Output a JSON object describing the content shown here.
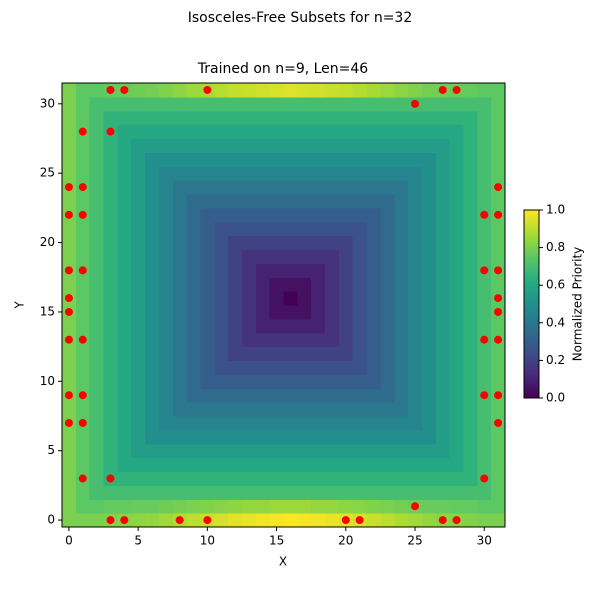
{
  "chart_data": {
    "type": "heatmap",
    "suptitle": "Isosceles-Free Subsets for n=32",
    "title": "Trained on n=9, Len=46",
    "x_label": "X",
    "y_label": "Y",
    "colorbar_label": "Normalized Priority",
    "colormap": "viridis",
    "xlim": [
      -0.5,
      31.5
    ],
    "ylim": [
      -0.5,
      31.5
    ],
    "xticks": [
      0,
      5,
      10,
      15,
      20,
      25,
      30
    ],
    "yticks": [
      0,
      5,
      10,
      15,
      20,
      25,
      30
    ],
    "clim": [
      0,
      1
    ],
    "cticks": [
      {
        "value": 0,
        "label": "0.0"
      },
      {
        "value": 0.2,
        "label": "0.2"
      },
      {
        "value": 0.4,
        "label": "0.4"
      },
      {
        "value": 0.6,
        "label": "0.6"
      },
      {
        "value": 0.8,
        "label": "0.8"
      },
      {
        "value": 1,
        "label": "1.0"
      }
    ],
    "z": [
      [
        0.8,
        0.8,
        0.8,
        0.81,
        0.82,
        0.83,
        0.84,
        0.86,
        0.88,
        0.9,
        0.92,
        0.94,
        0.96,
        0.97,
        0.98,
        0.99,
        1.0,
        0.99,
        0.98,
        0.97,
        0.96,
        0.94,
        0.92,
        0.9,
        0.88,
        0.86,
        0.84,
        0.83,
        0.82,
        0.81,
        0.8,
        0.8
      ],
      [
        0.8,
        0.75,
        0.75,
        0.76,
        0.76,
        0.77,
        0.77,
        0.78,
        0.79,
        0.8,
        0.81,
        0.82,
        0.83,
        0.84,
        0.84,
        0.85,
        0.85,
        0.85,
        0.84,
        0.84,
        0.83,
        0.82,
        0.81,
        0.8,
        0.79,
        0.78,
        0.77,
        0.77,
        0.76,
        0.76,
        0.75,
        0.75
      ],
      [
        0.8,
        0.75,
        0.7,
        0.7,
        0.7,
        0.7,
        0.7,
        0.7,
        0.7,
        0.7,
        0.7,
        0.7,
        0.7,
        0.7,
        0.7,
        0.7,
        0.7,
        0.7,
        0.7,
        0.7,
        0.7,
        0.7,
        0.7,
        0.7,
        0.7,
        0.7,
        0.7,
        0.7,
        0.7,
        0.7,
        0.7,
        0.75
      ],
      [
        0.8,
        0.75,
        0.7,
        0.65,
        0.65,
        0.65,
        0.65,
        0.65,
        0.65,
        0.65,
        0.65,
        0.65,
        0.65,
        0.65,
        0.65,
        0.65,
        0.65,
        0.65,
        0.65,
        0.65,
        0.65,
        0.65,
        0.65,
        0.65,
        0.65,
        0.65,
        0.65,
        0.65,
        0.65,
        0.65,
        0.7,
        0.75
      ],
      [
        0.8,
        0.75,
        0.7,
        0.65,
        0.6,
        0.6,
        0.6,
        0.6,
        0.6,
        0.6,
        0.6,
        0.6,
        0.6,
        0.6,
        0.6,
        0.6,
        0.6,
        0.6,
        0.6,
        0.6,
        0.6,
        0.6,
        0.6,
        0.6,
        0.6,
        0.6,
        0.6,
        0.6,
        0.6,
        0.65,
        0.7,
        0.75
      ],
      [
        0.8,
        0.75,
        0.7,
        0.65,
        0.6,
        0.55,
        0.55,
        0.55,
        0.55,
        0.55,
        0.55,
        0.55,
        0.55,
        0.55,
        0.55,
        0.55,
        0.55,
        0.55,
        0.55,
        0.55,
        0.55,
        0.55,
        0.55,
        0.55,
        0.55,
        0.55,
        0.55,
        0.55,
        0.6,
        0.65,
        0.7,
        0.75
      ],
      [
        0.8,
        0.75,
        0.7,
        0.65,
        0.6,
        0.55,
        0.5,
        0.5,
        0.5,
        0.5,
        0.5,
        0.5,
        0.5,
        0.5,
        0.5,
        0.5,
        0.5,
        0.5,
        0.5,
        0.5,
        0.5,
        0.5,
        0.5,
        0.5,
        0.5,
        0.5,
        0.5,
        0.55,
        0.6,
        0.65,
        0.7,
        0.75
      ],
      [
        0.8,
        0.75,
        0.7,
        0.65,
        0.6,
        0.55,
        0.5,
        0.45,
        0.45,
        0.45,
        0.45,
        0.45,
        0.45,
        0.45,
        0.45,
        0.45,
        0.45,
        0.45,
        0.45,
        0.45,
        0.45,
        0.45,
        0.45,
        0.45,
        0.45,
        0.45,
        0.5,
        0.55,
        0.6,
        0.65,
        0.7,
        0.75
      ],
      [
        0.8,
        0.75,
        0.7,
        0.65,
        0.6,
        0.55,
        0.5,
        0.45,
        0.4,
        0.4,
        0.4,
        0.4,
        0.4,
        0.4,
        0.4,
        0.4,
        0.4,
        0.4,
        0.4,
        0.4,
        0.4,
        0.4,
        0.4,
        0.4,
        0.4,
        0.45,
        0.5,
        0.55,
        0.6,
        0.65,
        0.7,
        0.75
      ],
      [
        0.8,
        0.75,
        0.7,
        0.65,
        0.6,
        0.55,
        0.5,
        0.45,
        0.4,
        0.35,
        0.35,
        0.35,
        0.35,
        0.35,
        0.35,
        0.35,
        0.35,
        0.35,
        0.35,
        0.35,
        0.35,
        0.35,
        0.35,
        0.35,
        0.4,
        0.45,
        0.5,
        0.55,
        0.6,
        0.65,
        0.7,
        0.75
      ],
      [
        0.8,
        0.75,
        0.7,
        0.65,
        0.6,
        0.55,
        0.5,
        0.45,
        0.4,
        0.35,
        0.3,
        0.3,
        0.3,
        0.3,
        0.3,
        0.3,
        0.3,
        0.3,
        0.3,
        0.3,
        0.3,
        0.3,
        0.3,
        0.35,
        0.4,
        0.45,
        0.5,
        0.55,
        0.6,
        0.65,
        0.7,
        0.75
      ],
      [
        0.8,
        0.75,
        0.7,
        0.65,
        0.6,
        0.55,
        0.5,
        0.45,
        0.4,
        0.35,
        0.3,
        0.25,
        0.25,
        0.25,
        0.25,
        0.25,
        0.25,
        0.25,
        0.25,
        0.25,
        0.25,
        0.25,
        0.3,
        0.35,
        0.4,
        0.45,
        0.5,
        0.55,
        0.6,
        0.65,
        0.7,
        0.75
      ],
      [
        0.8,
        0.75,
        0.7,
        0.65,
        0.6,
        0.55,
        0.5,
        0.45,
        0.4,
        0.35,
        0.3,
        0.25,
        0.2,
        0.2,
        0.2,
        0.2,
        0.2,
        0.2,
        0.2,
        0.2,
        0.2,
        0.25,
        0.3,
        0.35,
        0.4,
        0.45,
        0.5,
        0.55,
        0.6,
        0.65,
        0.7,
        0.75
      ],
      [
        0.8,
        0.75,
        0.7,
        0.65,
        0.6,
        0.55,
        0.5,
        0.45,
        0.4,
        0.35,
        0.3,
        0.25,
        0.2,
        0.15,
        0.15,
        0.15,
        0.15,
        0.15,
        0.15,
        0.15,
        0.2,
        0.25,
        0.3,
        0.35,
        0.4,
        0.45,
        0.5,
        0.55,
        0.6,
        0.65,
        0.7,
        0.75
      ],
      [
        0.8,
        0.75,
        0.7,
        0.65,
        0.6,
        0.55,
        0.5,
        0.45,
        0.4,
        0.35,
        0.3,
        0.25,
        0.2,
        0.15,
        0.1,
        0.1,
        0.1,
        0.1,
        0.1,
        0.15,
        0.2,
        0.25,
        0.3,
        0.35,
        0.4,
        0.45,
        0.5,
        0.55,
        0.6,
        0.65,
        0.7,
        0.75
      ],
      [
        0.8,
        0.75,
        0.7,
        0.65,
        0.6,
        0.55,
        0.5,
        0.45,
        0.4,
        0.35,
        0.3,
        0.25,
        0.2,
        0.15,
        0.1,
        0.05,
        0.05,
        0.05,
        0.1,
        0.15,
        0.2,
        0.25,
        0.3,
        0.35,
        0.4,
        0.45,
        0.5,
        0.55,
        0.6,
        0.65,
        0.7,
        0.75
      ],
      [
        0.8,
        0.75,
        0.7,
        0.65,
        0.6,
        0.55,
        0.5,
        0.45,
        0.4,
        0.35,
        0.3,
        0.25,
        0.2,
        0.15,
        0.1,
        0.05,
        0,
        0.05,
        0.1,
        0.15,
        0.2,
        0.25,
        0.3,
        0.35,
        0.4,
        0.45,
        0.5,
        0.55,
        0.6,
        0.65,
        0.7,
        0.75
      ],
      [
        0.8,
        0.75,
        0.7,
        0.65,
        0.6,
        0.55,
        0.5,
        0.45,
        0.4,
        0.35,
        0.3,
        0.25,
        0.2,
        0.15,
        0.1,
        0.05,
        0.05,
        0.05,
        0.1,
        0.15,
        0.2,
        0.25,
        0.3,
        0.35,
        0.4,
        0.45,
        0.5,
        0.55,
        0.6,
        0.65,
        0.7,
        0.75
      ],
      [
        0.8,
        0.75,
        0.7,
        0.65,
        0.6,
        0.55,
        0.5,
        0.45,
        0.4,
        0.35,
        0.3,
        0.25,
        0.2,
        0.15,
        0.1,
        0.1,
        0.1,
        0.1,
        0.1,
        0.15,
        0.2,
        0.25,
        0.3,
        0.35,
        0.4,
        0.45,
        0.5,
        0.55,
        0.6,
        0.65,
        0.7,
        0.75
      ],
      [
        0.8,
        0.75,
        0.7,
        0.65,
        0.6,
        0.55,
        0.5,
        0.45,
        0.4,
        0.35,
        0.3,
        0.25,
        0.2,
        0.15,
        0.15,
        0.15,
        0.15,
        0.15,
        0.15,
        0.15,
        0.2,
        0.25,
        0.3,
        0.35,
        0.4,
        0.45,
        0.5,
        0.55,
        0.6,
        0.65,
        0.7,
        0.75
      ],
      [
        0.8,
        0.75,
        0.7,
        0.65,
        0.6,
        0.55,
        0.5,
        0.45,
        0.4,
        0.35,
        0.3,
        0.25,
        0.2,
        0.2,
        0.2,
        0.2,
        0.2,
        0.2,
        0.2,
        0.2,
        0.2,
        0.25,
        0.3,
        0.35,
        0.4,
        0.45,
        0.5,
        0.55,
        0.6,
        0.65,
        0.7,
        0.75
      ],
      [
        0.8,
        0.75,
        0.7,
        0.65,
        0.6,
        0.55,
        0.5,
        0.45,
        0.4,
        0.35,
        0.3,
        0.25,
        0.25,
        0.25,
        0.25,
        0.25,
        0.25,
        0.25,
        0.25,
        0.25,
        0.25,
        0.25,
        0.3,
        0.35,
        0.4,
        0.45,
        0.5,
        0.55,
        0.6,
        0.65,
        0.7,
        0.75
      ],
      [
        0.8,
        0.75,
        0.7,
        0.65,
        0.6,
        0.55,
        0.5,
        0.45,
        0.4,
        0.35,
        0.3,
        0.3,
        0.3,
        0.3,
        0.3,
        0.3,
        0.3,
        0.3,
        0.3,
        0.3,
        0.3,
        0.3,
        0.3,
        0.35,
        0.4,
        0.45,
        0.5,
        0.55,
        0.6,
        0.65,
        0.7,
        0.75
      ],
      [
        0.8,
        0.75,
        0.7,
        0.65,
        0.6,
        0.55,
        0.5,
        0.45,
        0.4,
        0.35,
        0.35,
        0.35,
        0.35,
        0.35,
        0.35,
        0.35,
        0.35,
        0.35,
        0.35,
        0.35,
        0.35,
        0.35,
        0.35,
        0.35,
        0.4,
        0.45,
        0.5,
        0.55,
        0.6,
        0.65,
        0.7,
        0.75
      ],
      [
        0.8,
        0.75,
        0.7,
        0.65,
        0.6,
        0.55,
        0.5,
        0.45,
        0.4,
        0.4,
        0.4,
        0.4,
        0.4,
        0.4,
        0.4,
        0.4,
        0.4,
        0.4,
        0.4,
        0.4,
        0.4,
        0.4,
        0.4,
        0.4,
        0.4,
        0.45,
        0.5,
        0.55,
        0.6,
        0.65,
        0.7,
        0.75
      ],
      [
        0.8,
        0.75,
        0.7,
        0.65,
        0.6,
        0.55,
        0.5,
        0.45,
        0.45,
        0.45,
        0.45,
        0.45,
        0.45,
        0.45,
        0.45,
        0.45,
        0.45,
        0.45,
        0.45,
        0.45,
        0.45,
        0.45,
        0.45,
        0.45,
        0.45,
        0.45,
        0.5,
        0.55,
        0.6,
        0.65,
        0.7,
        0.75
      ],
      [
        0.8,
        0.75,
        0.7,
        0.65,
        0.6,
        0.55,
        0.5,
        0.5,
        0.5,
        0.5,
        0.5,
        0.5,
        0.5,
        0.5,
        0.5,
        0.5,
        0.5,
        0.5,
        0.5,
        0.5,
        0.5,
        0.5,
        0.5,
        0.5,
        0.5,
        0.5,
        0.5,
        0.55,
        0.6,
        0.65,
        0.7,
        0.75
      ],
      [
        0.8,
        0.75,
        0.7,
        0.65,
        0.6,
        0.55,
        0.55,
        0.55,
        0.55,
        0.55,
        0.55,
        0.55,
        0.55,
        0.55,
        0.55,
        0.55,
        0.55,
        0.55,
        0.55,
        0.55,
        0.55,
        0.55,
        0.55,
        0.55,
        0.55,
        0.55,
        0.55,
        0.55,
        0.6,
        0.65,
        0.7,
        0.75
      ],
      [
        0.8,
        0.75,
        0.7,
        0.65,
        0.6,
        0.6,
        0.6,
        0.6,
        0.6,
        0.6,
        0.6,
        0.6,
        0.6,
        0.6,
        0.6,
        0.6,
        0.6,
        0.6,
        0.6,
        0.6,
        0.6,
        0.6,
        0.6,
        0.6,
        0.6,
        0.6,
        0.6,
        0.6,
        0.6,
        0.65,
        0.7,
        0.75
      ],
      [
        0.8,
        0.75,
        0.7,
        0.65,
        0.65,
        0.65,
        0.65,
        0.65,
        0.65,
        0.65,
        0.65,
        0.65,
        0.65,
        0.65,
        0.65,
        0.65,
        0.65,
        0.65,
        0.65,
        0.65,
        0.65,
        0.65,
        0.65,
        0.65,
        0.65,
        0.65,
        0.65,
        0.65,
        0.65,
        0.65,
        0.7,
        0.75
      ],
      [
        0.8,
        0.75,
        0.7,
        0.7,
        0.7,
        0.7,
        0.7,
        0.7,
        0.7,
        0.7,
        0.7,
        0.7,
        0.7,
        0.7,
        0.7,
        0.7,
        0.7,
        0.7,
        0.7,
        0.7,
        0.7,
        0.7,
        0.7,
        0.7,
        0.7,
        0.7,
        0.7,
        0.7,
        0.7,
        0.7,
        0.7,
        0.75
      ],
      [
        0.8,
        0.75,
        0.75,
        0.76,
        0.77,
        0.78,
        0.79,
        0.81,
        0.83,
        0.85,
        0.87,
        0.89,
        0.91,
        0.92,
        0.93,
        0.94,
        0.95,
        0.94,
        0.93,
        0.92,
        0.91,
        0.89,
        0.87,
        0.85,
        0.83,
        0.81,
        0.79,
        0.78,
        0.77,
        0.76,
        0.75,
        0.75
      ]
    ],
    "points": {
      "color": "#ff0000",
      "x": [
        3,
        4,
        10,
        27,
        28,
        25,
        1,
        3,
        0,
        1,
        31,
        0,
        1,
        30,
        31,
        0,
        1,
        30,
        31,
        0,
        31,
        0,
        31,
        0,
        1,
        30,
        31,
        0,
        1,
        30,
        31,
        0,
        1,
        31,
        1,
        3,
        30,
        25,
        3,
        4,
        8,
        10,
        20,
        21,
        27,
        28
      ],
      "y": [
        31,
        31,
        31,
        31,
        31,
        30,
        28,
        28,
        24,
        24,
        24,
        22,
        22,
        22,
        22,
        18,
        18,
        18,
        18,
        16,
        16,
        15,
        15,
        13,
        13,
        13,
        13,
        9,
        9,
        9,
        9,
        7,
        7,
        7,
        3,
        3,
        3,
        1,
        0,
        0,
        0,
        0,
        0,
        0,
        0,
        0
      ]
    }
  }
}
